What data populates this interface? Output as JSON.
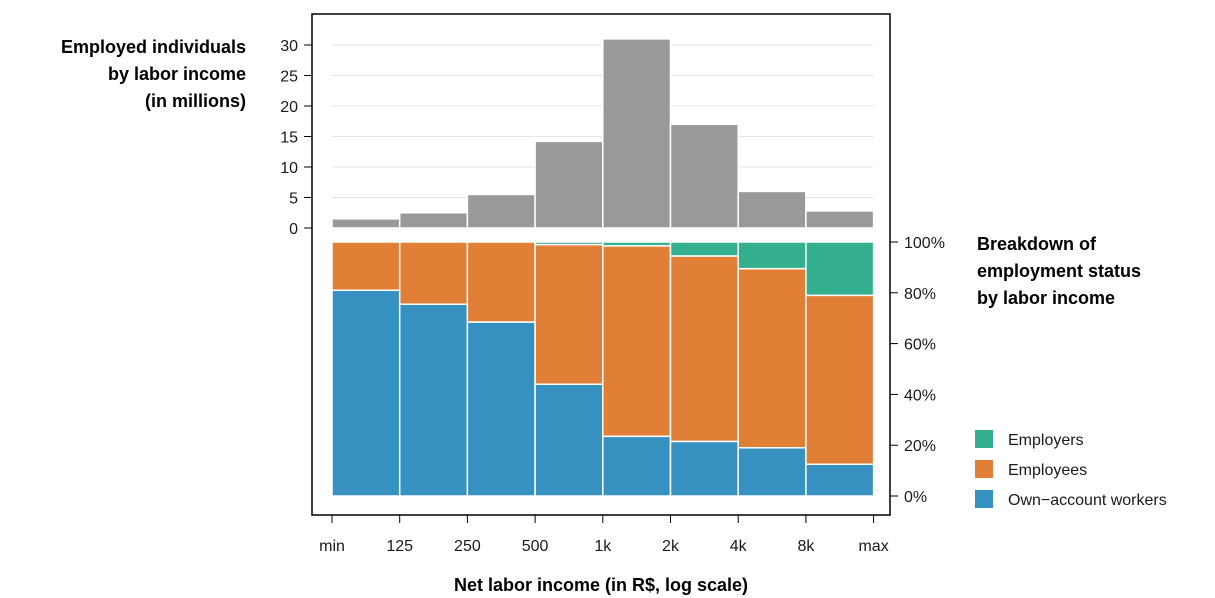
{
  "chart_data": {
    "type": "bar",
    "x_label": "Net labor income (in R$, log scale)",
    "x_ticks": [
      "min",
      "125",
      "250",
      "500",
      "1k",
      "2k",
      "4k",
      "8k",
      "max"
    ],
    "top_panel": {
      "title_lines": [
        "Employed individuals",
        "by labor income",
        "(in millions)"
      ],
      "y_ticks": [
        "0",
        "5",
        "10",
        "15",
        "20",
        "25",
        "30"
      ],
      "ylim": [
        0,
        33
      ],
      "bar_color": "#999999",
      "values": [
        1.5,
        2.5,
        5.5,
        14.2,
        31.0,
        17.0,
        6.0,
        2.8
      ]
    },
    "bottom_panel": {
      "title_lines": [
        "Breakdown of",
        "employment status",
        "by labor income"
      ],
      "y_ticks": [
        "0%",
        "20%",
        "40%",
        "60%",
        "80%",
        "100%"
      ],
      "ylim": [
        0,
        100
      ],
      "series": [
        {
          "name": "Own−account workers",
          "color": "#3690c0",
          "values": [
            81,
            75.5,
            68.5,
            44,
            23.5,
            21.5,
            19,
            12.5
          ]
        },
        {
          "name": "Employees",
          "color": "#e07f35",
          "values": [
            19,
            24.5,
            31.5,
            55,
            75,
            73,
            70.5,
            66.5
          ]
        },
        {
          "name": "Employers",
          "color": "#35b08f",
          "values": [
            0,
            0,
            0,
            1,
            1.5,
            5.5,
            10.5,
            21
          ]
        }
      ],
      "legend_order": [
        "Employers",
        "Employees",
        "Own−account workers"
      ]
    }
  }
}
